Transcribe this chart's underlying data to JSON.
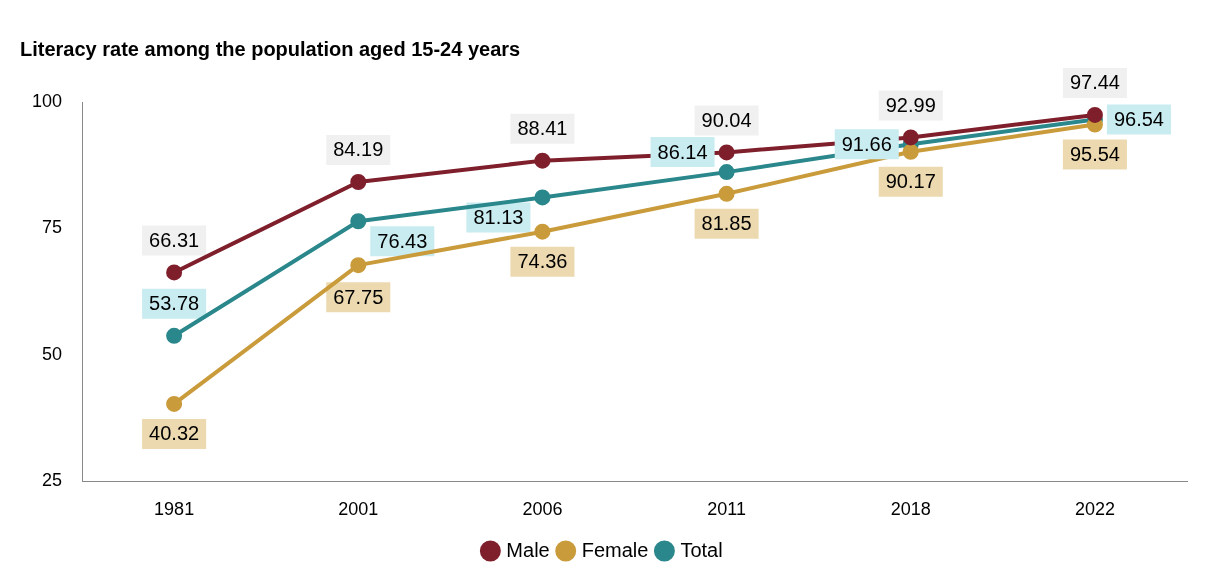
{
  "chart_data": {
    "type": "line",
    "title": "Literacy rate among the population aged 15-24 years",
    "categories": [
      "1981",
      "2001",
      "2006",
      "2011",
      "2018",
      "2022"
    ],
    "series": [
      {
        "name": "Male",
        "color": "#7e1f2b",
        "values": [
          66.31,
          84.19,
          88.41,
          90.04,
          92.99,
          97.44
        ]
      },
      {
        "name": "Female",
        "color": "#c99b3b",
        "values": [
          40.32,
          67.75,
          74.36,
          81.85,
          90.17,
          95.54
        ]
      },
      {
        "name": "Total",
        "color": "#2a878b",
        "values": [
          53.78,
          76.43,
          81.13,
          86.14,
          91.66,
          96.54
        ]
      }
    ],
    "ylim": [
      25,
      100
    ],
    "yticks": [
      25,
      50,
      75,
      100
    ],
    "grid": false,
    "legend": "bottom",
    "marker": "circle",
    "line_style": "solid",
    "data_labels": true
  }
}
